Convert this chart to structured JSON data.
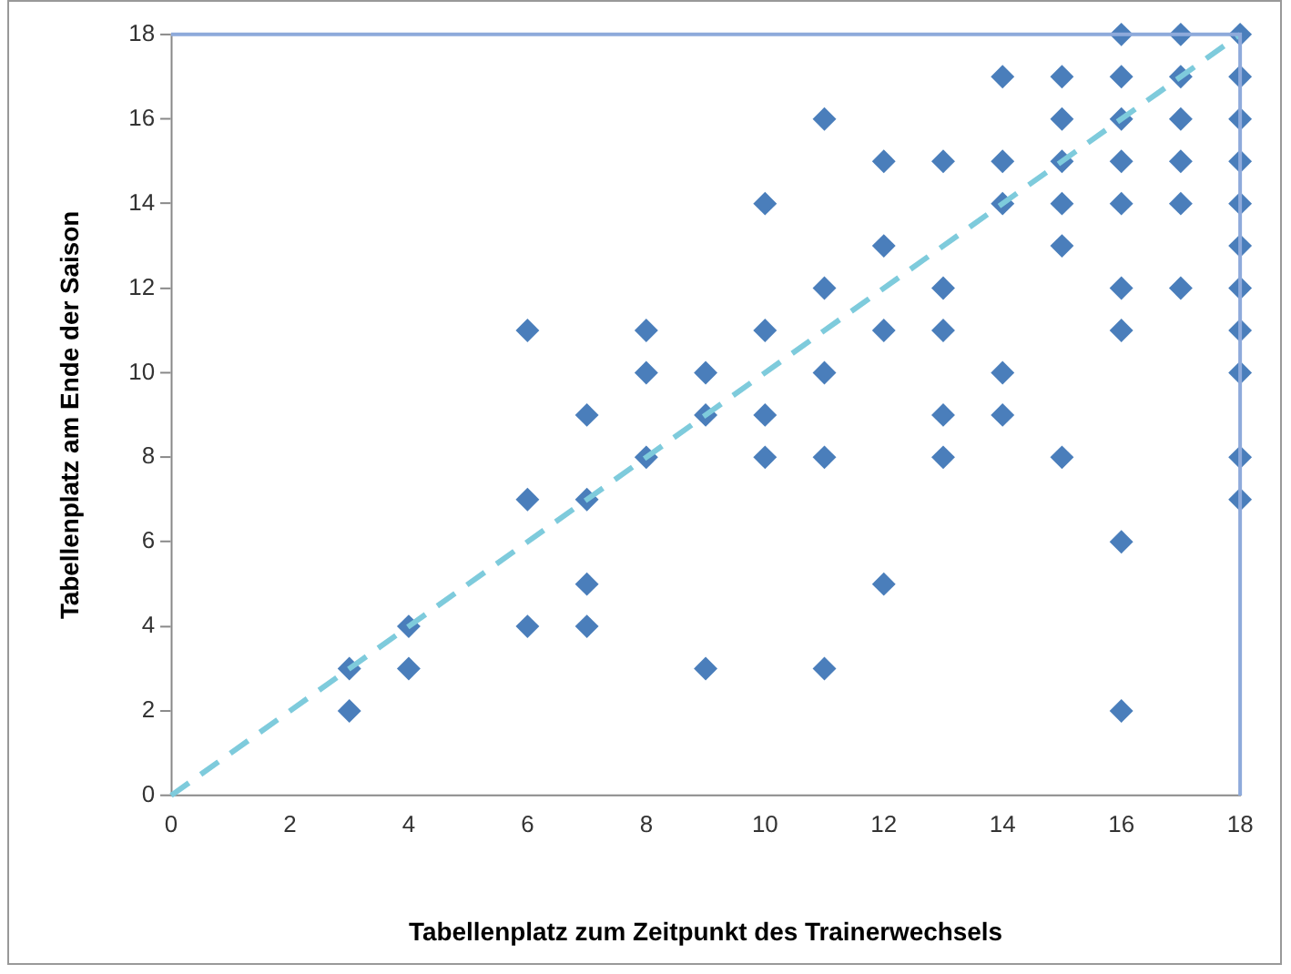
{
  "chart_data": {
    "type": "scatter",
    "xlabel": "Tabellenplatz zum Zeitpunkt des Trainerwechsels",
    "ylabel": "Tabellenplatz am Ende der Saison",
    "xlim": [
      0,
      18
    ],
    "ylim": [
      0,
      18
    ],
    "xticks": [
      0,
      2,
      4,
      6,
      8,
      10,
      12,
      14,
      16,
      18
    ],
    "yticks": [
      0,
      2,
      4,
      6,
      8,
      10,
      12,
      14,
      16,
      18
    ],
    "grid": false,
    "legend": false,
    "marker": "diamond",
    "series": [
      {
        "color": "#4a7ebb",
        "x": [
          3,
          3,
          4,
          4,
          6,
          6,
          6,
          7,
          7,
          7,
          7,
          8,
          8,
          8,
          9,
          9,
          9,
          10,
          10,
          10,
          10,
          11,
          11,
          11,
          11,
          11,
          12,
          12,
          12,
          12,
          13,
          13,
          13,
          13,
          13,
          14,
          14,
          14,
          14,
          14,
          15,
          15,
          15,
          15,
          15,
          15,
          16,
          16,
          16,
          16,
          16,
          16,
          16,
          16,
          16,
          17,
          17,
          17,
          17,
          17,
          17,
          18,
          18,
          18,
          18,
          18,
          18,
          18,
          18,
          18,
          18,
          18
        ],
        "values": [
          3,
          2,
          4,
          3,
          11,
          7,
          4,
          9,
          7,
          5,
          4,
          11,
          10,
          8,
          10,
          9,
          3,
          14,
          11,
          9,
          8,
          16,
          12,
          10,
          8,
          3,
          15,
          13,
          11,
          5,
          15,
          12,
          11,
          9,
          8,
          17,
          15,
          14,
          10,
          9,
          17,
          16,
          15,
          14,
          13,
          8,
          18,
          17,
          16,
          15,
          14,
          12,
          11,
          6,
          2,
          18,
          17,
          16,
          15,
          14,
          12,
          18,
          17,
          16,
          15,
          14,
          13,
          12,
          11,
          10,
          8,
          7
        ]
      },
      {
        "type": "line",
        "color": "#7ecbdc",
        "x": [
          0,
          18
        ],
        "values": [
          0,
          18
        ],
        "marker": "none",
        "line_style": "dashed"
      }
    ]
  }
}
